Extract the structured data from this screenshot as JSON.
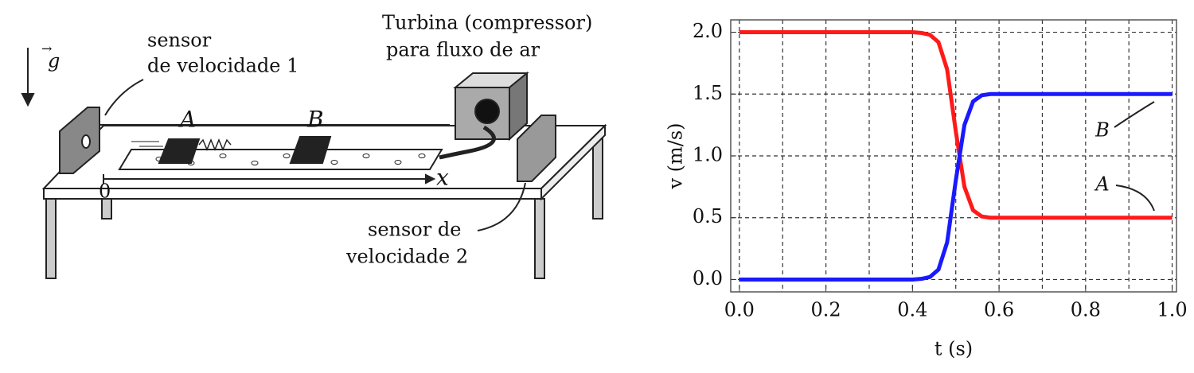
{
  "diagram": {
    "g_label": "g",
    "sensor1_line1": "sensor",
    "sensor1_line2": "de velocidade 1",
    "turbine_line1": "Turbina (compressor)",
    "turbine_line2": "para fluxo de ar",
    "cart_a": "A",
    "cart_b": "B",
    "axis_x": "x",
    "origin": "0",
    "sensor2_line1": "sensor  de",
    "sensor2_line2": "velocidade 2"
  },
  "chart_data": {
    "type": "line",
    "xlabel": "t (s)",
    "ylabel": "v (m/s)",
    "x": [
      0,
      0.1,
      0.2,
      0.3,
      0.4,
      0.42,
      0.44,
      0.46,
      0.48,
      0.5,
      0.52,
      0.54,
      0.56,
      0.58,
      0.6,
      0.7,
      0.8,
      0.9,
      1.0
    ],
    "series": [
      {
        "name": "A",
        "color": "#ff1a1a",
        "values": [
          2,
          2,
          2,
          2,
          2,
          1.995,
          1.98,
          1.92,
          1.7,
          1.2,
          0.75,
          0.56,
          0.51,
          0.5,
          0.5,
          0.5,
          0.5,
          0.5,
          0.5
        ]
      },
      {
        "name": "B",
        "color": "#1a1aff",
        "values": [
          0,
          0,
          0,
          0,
          0,
          0.005,
          0.02,
          0.08,
          0.3,
          0.8,
          1.25,
          1.44,
          1.49,
          1.5,
          1.5,
          1.5,
          1.5,
          1.5,
          1.5
        ]
      }
    ],
    "xlim": [
      -0.02,
      1.01
    ],
    "ylim": [
      -0.1,
      2.1
    ],
    "xticks": [
      {
        "value": 0,
        "label": "0.0"
      },
      {
        "value": 0.2,
        "label": "0.2"
      },
      {
        "value": 0.4,
        "label": "0.4"
      },
      {
        "value": 0.6,
        "label": "0.6"
      },
      {
        "value": 0.8,
        "label": "0.8"
      },
      {
        "value": 1.0,
        "label": "1.0"
      }
    ],
    "yticks": [
      {
        "value": 0,
        "label": "0.0"
      },
      {
        "value": 0.5,
        "label": "0.5"
      },
      {
        "value": 1.0,
        "label": "1.0"
      },
      {
        "value": 1.5,
        "label": "1.5"
      },
      {
        "value": 2.0,
        "label": "2.0"
      }
    ],
    "xgrid": [
      0.1,
      0.3,
      0.5,
      0.7,
      0.9
    ],
    "grid": true
  }
}
